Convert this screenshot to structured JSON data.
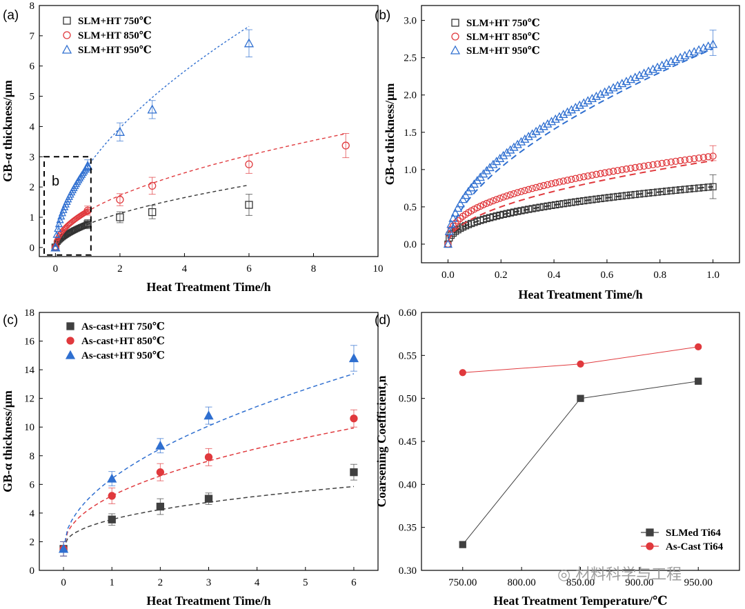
{
  "chart_data": [
    {
      "panel": "(a)",
      "type": "scatter",
      "xlabel": "Heat Treatment Time/h",
      "ylabel": "GB-α thickness/μm",
      "xlim": [
        -0.5,
        10
      ],
      "ylim": [
        -0.3,
        8
      ],
      "xticks": [
        0,
        2,
        4,
        6,
        8,
        10
      ],
      "yticks": [
        0,
        1,
        2,
        3,
        4,
        5,
        6,
        7,
        8
      ],
      "legend": "top-left",
      "inset_label": "b",
      "series": [
        {
          "name": "SLM+HT 750℃",
          "marker": "square-open",
          "color": "#333333",
          "x": [
            0,
            1,
            2,
            3,
            6
          ],
          "y": [
            0,
            0.77,
            1.0,
            1.17,
            1.41
          ],
          "err": [
            0,
            0.15,
            0.18,
            0.22,
            0.35
          ]
        },
        {
          "name": "SLM+HT 850℃",
          "marker": "circle-open",
          "color": "#e0393d",
          "x": [
            0,
            1,
            2,
            3,
            6,
            9
          ],
          "y": [
            0,
            1.22,
            1.58,
            2.04,
            2.75,
            3.37
          ],
          "err": [
            0,
            0.15,
            0.2,
            0.28,
            0.3,
            0.4
          ]
        },
        {
          "name": "SLM+HT 950℃",
          "marker": "triangle-open",
          "color": "#2f6fd0",
          "x": [
            0,
            1,
            2,
            3,
            6
          ],
          "y": [
            0,
            2.7,
            3.82,
            4.56,
            6.75
          ],
          "err": [
            0,
            0.2,
            0.3,
            0.3,
            0.45
          ]
        }
      ]
    },
    {
      "panel": "(b)",
      "type": "scatter",
      "xlabel": "Heat Treatment Time/h",
      "ylabel": "GB-α thickness/μm",
      "xlim": [
        -0.1,
        1.1
      ],
      "ylim": [
        -0.25,
        3.2
      ],
      "xticks": [
        0.0,
        0.2,
        0.4,
        0.6,
        0.8,
        1.0
      ],
      "yticks": [
        0.0,
        0.5,
        1.0,
        1.5,
        2.0,
        2.5,
        3.0
      ],
      "legend": "top-left",
      "series": [
        {
          "name": "SLM+HT 750℃",
          "marker": "square-open",
          "color": "#333333",
          "end_value": 0.77,
          "end_err": 0.16
        },
        {
          "name": "SLM+HT 850℃",
          "marker": "circle-open",
          "color": "#e0393d",
          "end_value": 1.22,
          "end_err": 0.1
        },
        {
          "name": "SLM+HT 950℃",
          "marker": "triangle-open",
          "color": "#2f6fd0",
          "end_value": 2.7,
          "end_err": 0.17
        }
      ]
    },
    {
      "panel": "(c)",
      "type": "scatter",
      "xlabel": "Heat Treatment Time/h",
      "ylabel": "GB-α thickness/μm",
      "xlim": [
        -0.5,
        6.5
      ],
      "ylim": [
        0,
        18
      ],
      "xticks": [
        0,
        1,
        2,
        3,
        4,
        5,
        6
      ],
      "yticks": [
        0,
        2,
        4,
        6,
        8,
        10,
        12,
        14,
        16,
        18
      ],
      "legend": "top-left",
      "series": [
        {
          "name": "As-cast+HT 750℃",
          "marker": "square",
          "color": "#404040",
          "x": [
            0,
            1,
            2,
            3,
            6
          ],
          "y": [
            1.5,
            3.55,
            4.45,
            5.0,
            6.85
          ],
          "err": [
            0.5,
            0.4,
            0.55,
            0.4,
            0.55
          ]
        },
        {
          "name": "As-cast+HT 850℃",
          "marker": "circle",
          "color": "#e0393d",
          "x": [
            0,
            1,
            2,
            3,
            6
          ],
          "y": [
            1.5,
            5.2,
            6.85,
            7.9,
            10.6
          ],
          "err": [
            0.5,
            0.55,
            0.6,
            0.6,
            0.6
          ]
        },
        {
          "name": "As-cast+HT 950℃",
          "marker": "triangle",
          "color": "#2f6fd0",
          "x": [
            0,
            1,
            2,
            3,
            6
          ],
          "y": [
            1.5,
            6.4,
            8.7,
            10.8,
            14.8
          ],
          "err": [
            0.5,
            0.5,
            0.5,
            0.6,
            0.9
          ]
        }
      ]
    },
    {
      "panel": "(d)",
      "type": "line",
      "xlabel": "Heat Treatment Temperature/℃",
      "ylabel": "Coarsening Coefficient,n",
      "xlim": [
        715,
        985
      ],
      "ylim": [
        0.3,
        0.6
      ],
      "xticks": [
        750,
        800,
        850,
        900,
        950
      ],
      "yticks": [
        0.3,
        0.35,
        0.4,
        0.45,
        0.5,
        0.55,
        0.6
      ],
      "legend": "bottom-right",
      "series": [
        {
          "name": "SLMed Ti64",
          "marker": "square",
          "color": "#404040",
          "x": [
            750,
            850,
            950
          ],
          "y": [
            0.33,
            0.5,
            0.52
          ]
        },
        {
          "name": "As-Cast Ti64",
          "marker": "circle",
          "color": "#e0393d",
          "x": [
            750,
            850,
            950
          ],
          "y": [
            0.53,
            0.54,
            0.56
          ]
        }
      ]
    }
  ],
  "watermark": "材料科学与工程"
}
